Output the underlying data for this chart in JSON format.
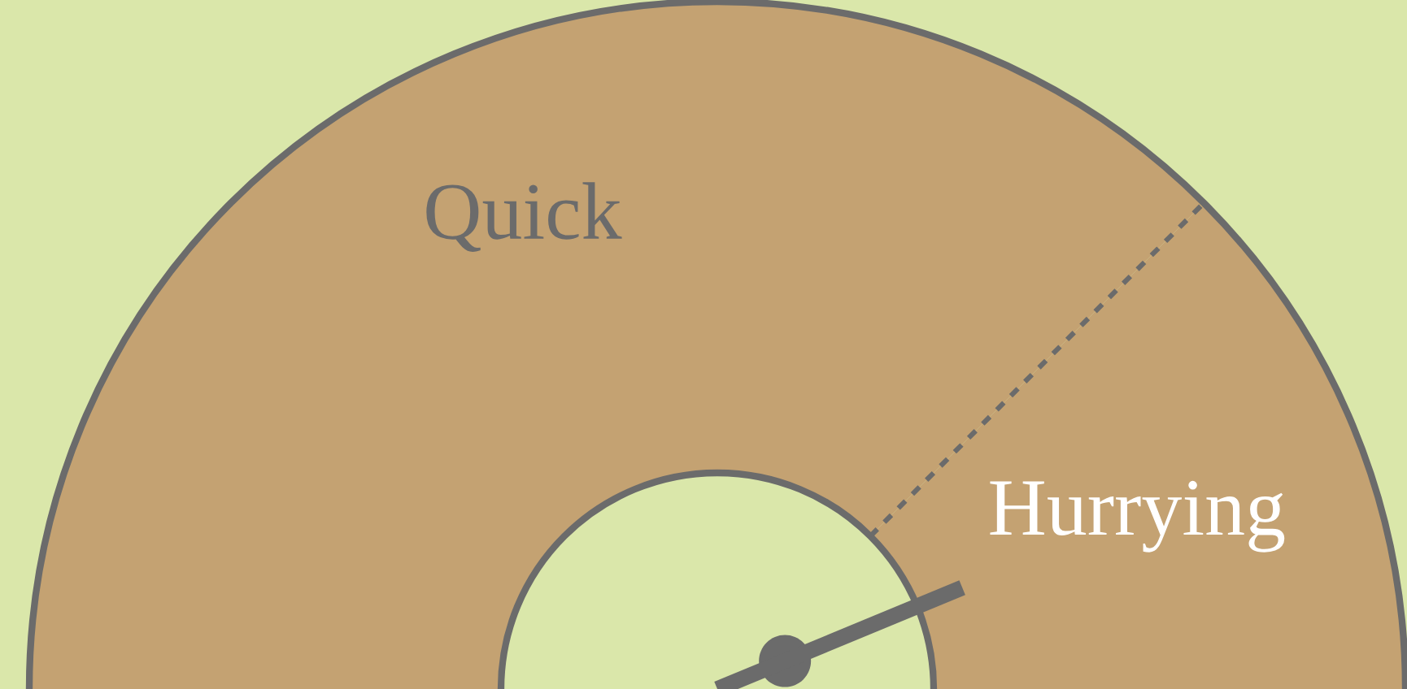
{
  "chart_data": {
    "type": "donut",
    "categories": [
      "Quick",
      "Hurrying"
    ],
    "values": [
      75,
      25
    ],
    "colors": [
      "#c4a272",
      "#c4a272"
    ],
    "needle": "Hurrying"
  }
}
